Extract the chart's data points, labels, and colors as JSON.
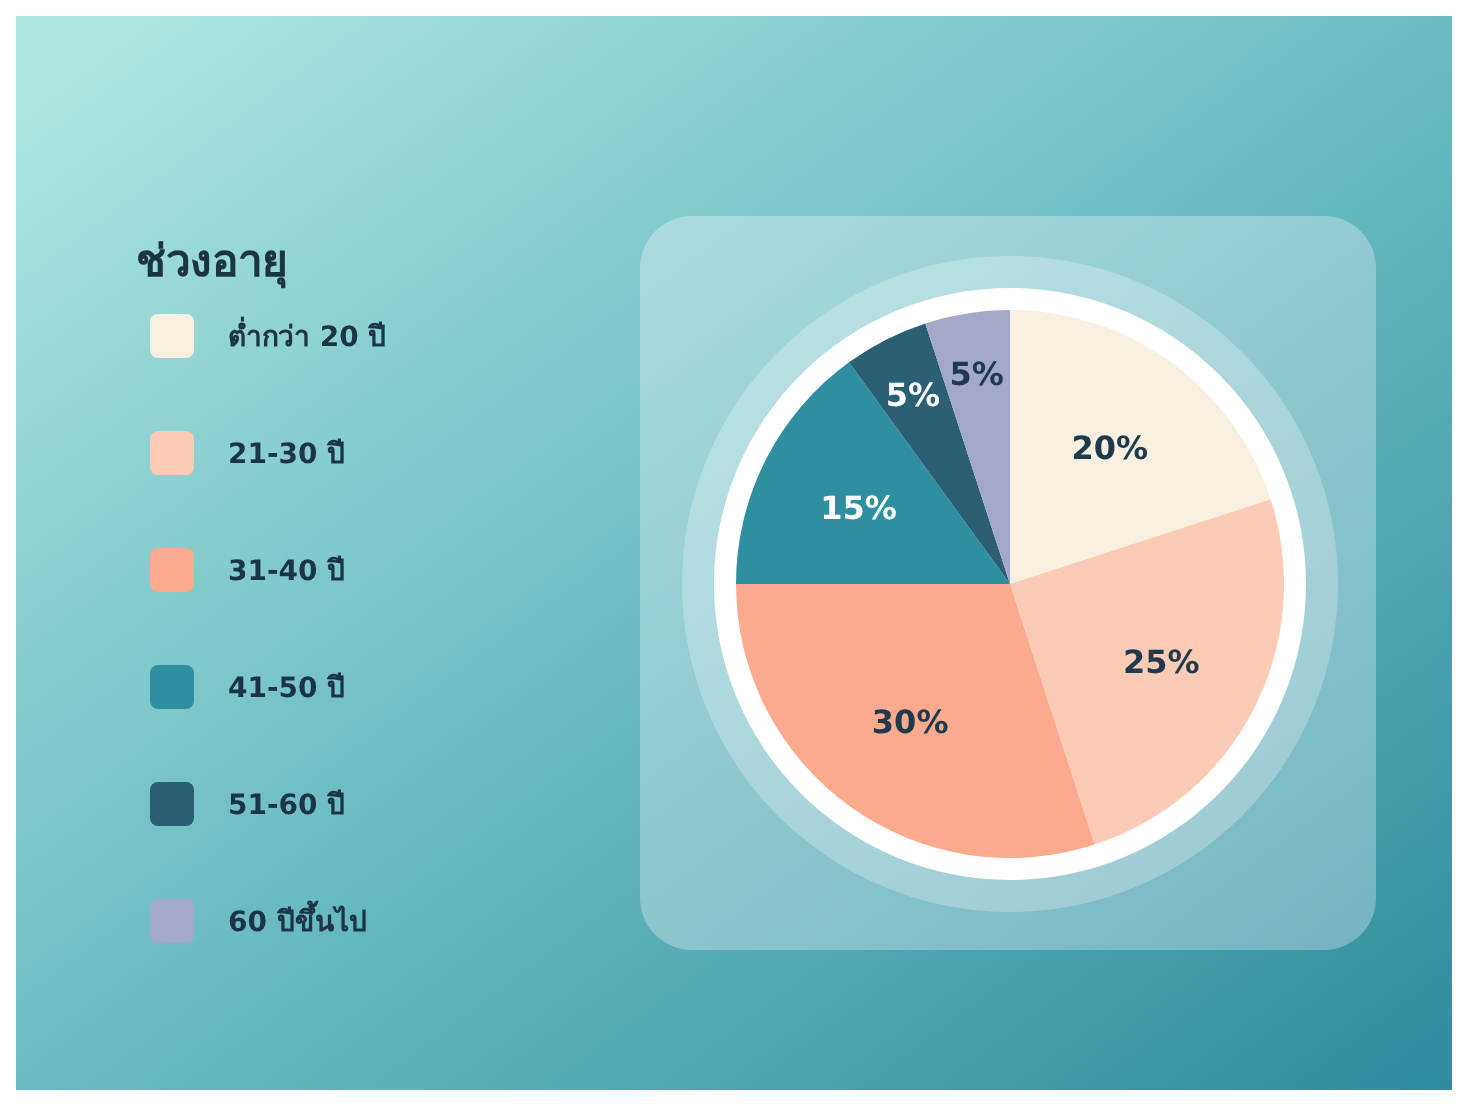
{
  "chart_data": {
    "type": "pie",
    "legend_title": "ช่วงอายุ",
    "categories": [
      "ต่ำกว่า 20 ปี",
      "21-30 ปี",
      "31-40 ปี",
      "41-50 ปี",
      "51-60 ปี",
      "60 ปีขึ้นไป"
    ],
    "values": [
      20,
      25,
      30,
      15,
      5,
      5
    ],
    "colors": [
      "#f7efe0",
      "#fccbb6",
      "#fbaa8e",
      "#2e8fa0",
      "#2b5f74",
      "#a3a8c8"
    ],
    "value_labels": [
      "20%",
      "25%",
      "30%",
      "15%",
      "5%",
      "5%"
    ],
    "legend": "left"
  }
}
